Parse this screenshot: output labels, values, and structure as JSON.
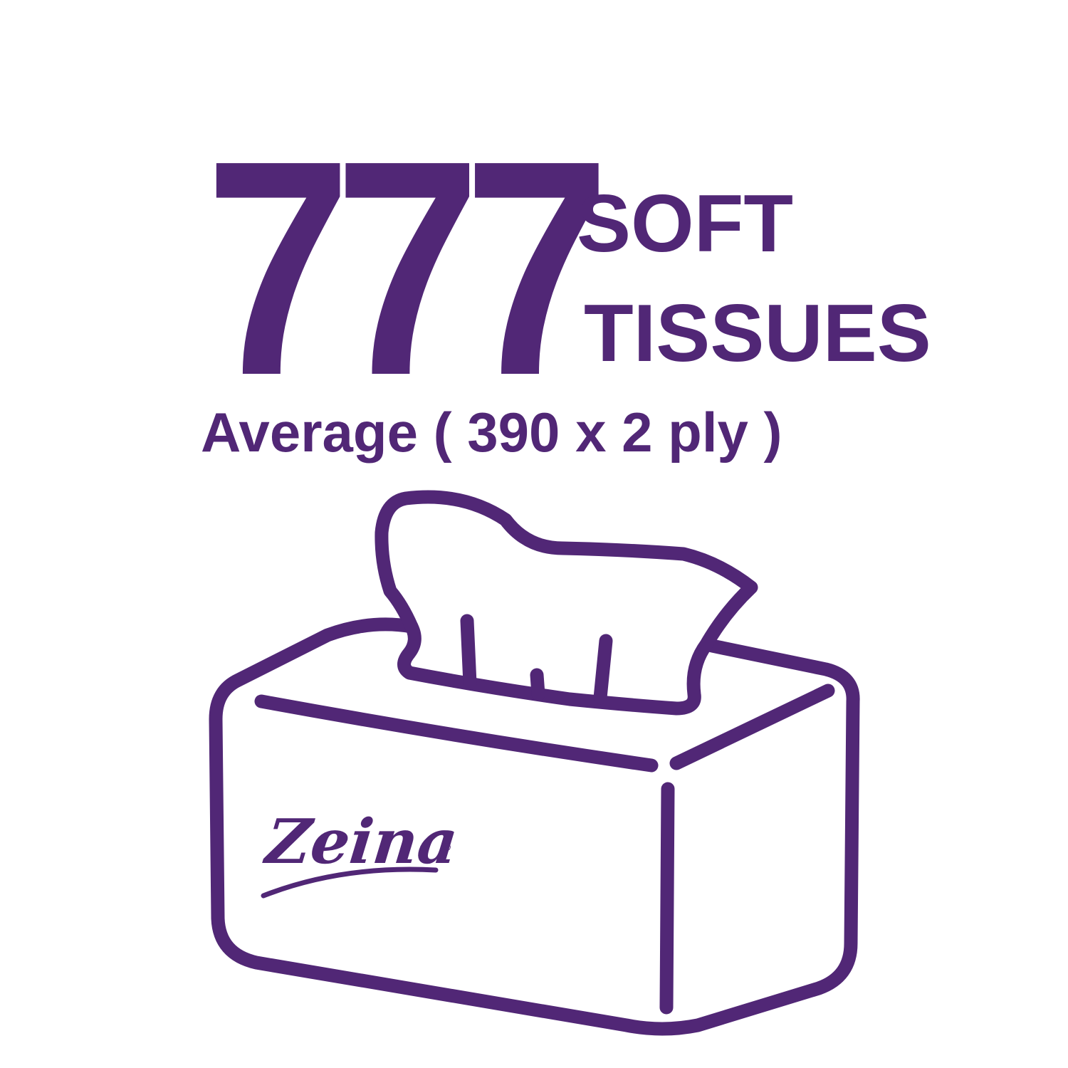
{
  "colors": {
    "brand_purple": "#512776",
    "background": "#ffffff"
  },
  "headline": {
    "count": "777",
    "line1": "SOFT",
    "line2": "TISSUES"
  },
  "subtitle": "Average ( 390 x 2 ply )",
  "brand": {
    "name": "Zeina",
    "registered_mark": "®"
  },
  "illustration": {
    "icon": "tissue-box-icon"
  }
}
